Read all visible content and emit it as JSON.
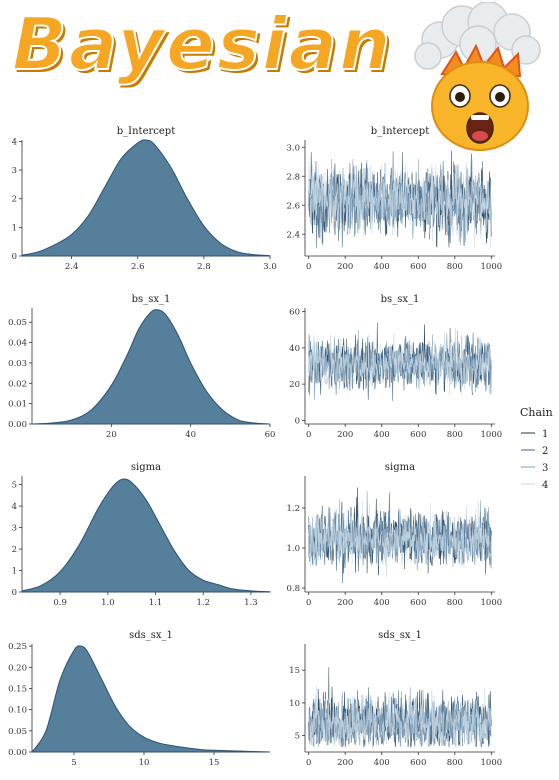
{
  "banner": {
    "text": "Bayesian",
    "color": "#f5a623",
    "emoji_icon": "exploding-head-icon"
  },
  "colors": {
    "density_fill": "#567f9c",
    "density_stroke": "#2d5170",
    "chains": [
      "#1b3752",
      "#3c6180",
      "#7d9fb8",
      "#c7d8e6"
    ]
  },
  "legend": {
    "title": "Chain",
    "entries": [
      "1",
      "2",
      "3",
      "4"
    ],
    "placement": "right"
  },
  "chart_data": [
    {
      "type": "area",
      "title": "b_Intercept",
      "kind": "density",
      "xlim": [
        2.25,
        3.0
      ],
      "ylim": [
        0,
        4.05
      ],
      "xticks": [
        2.4,
        2.6,
        2.8,
        3.0
      ],
      "xtick_labels": [
        "2.4",
        "2.6",
        "2.8",
        "3.0"
      ],
      "yticks": [
        0,
        1,
        2,
        3,
        4
      ],
      "ytick_labels": [
        "0",
        "1",
        "2",
        "3",
        "4"
      ],
      "x": [
        2.25,
        2.3,
        2.35,
        2.4,
        2.45,
        2.5,
        2.55,
        2.6,
        2.625,
        2.65,
        2.7,
        2.75,
        2.8,
        2.85,
        2.9,
        2.95,
        3.0
      ],
      "y": [
        0.03,
        0.15,
        0.4,
        0.75,
        1.4,
        2.4,
        3.4,
        3.95,
        4.05,
        3.9,
        3.1,
        2.0,
        1.05,
        0.45,
        0.15,
        0.05,
        0.01
      ]
    },
    {
      "type": "line",
      "title": "b_Intercept",
      "kind": "trace",
      "xlim": [
        -20,
        1020
      ],
      "ylim": [
        2.25,
        3.05
      ],
      "xticks": [
        0,
        200,
        400,
        600,
        800,
        1000
      ],
      "xtick_labels": [
        "0",
        "200",
        "400",
        "600",
        "800",
        "1000"
      ],
      "yticks": [
        2.4,
        2.6,
        2.8,
        3.0
      ],
      "ytick_labels": [
        "2.4",
        "2.6",
        "2.8",
        "3.0"
      ],
      "iterations": 1000,
      "center": 2.63,
      "spread": 0.13,
      "min_value": 2.3,
      "max_value": 2.98
    },
    {
      "type": "area",
      "title": "bs_sx_1",
      "kind": "density",
      "xlim": [
        0,
        60
      ],
      "ylim": [
        0,
        0.057
      ],
      "xticks": [
        20,
        40,
        60
      ],
      "xtick_labels": [
        "20",
        "40",
        "60"
      ],
      "yticks": [
        0,
        0.01,
        0.02,
        0.03,
        0.04,
        0.05
      ],
      "ytick_labels": [
        "0.00",
        "0.01",
        "0.02",
        "0.03",
        "0.04",
        "0.05"
      ],
      "x": [
        0,
        5,
        10,
        15,
        20,
        24,
        27,
        30,
        32,
        34,
        37,
        40,
        44,
        48,
        52,
        56,
        60
      ],
      "y": [
        0.0,
        0.0005,
        0.002,
        0.007,
        0.019,
        0.034,
        0.047,
        0.055,
        0.056,
        0.053,
        0.043,
        0.03,
        0.016,
        0.007,
        0.002,
        0.0005,
        0.0
      ]
    },
    {
      "type": "line",
      "title": "bs_sx_1",
      "kind": "trace",
      "xlim": [
        -20,
        1020
      ],
      "ylim": [
        -2,
        62
      ],
      "xticks": [
        0,
        200,
        400,
        600,
        800,
        1000
      ],
      "xtick_labels": [
        "0",
        "200",
        "400",
        "600",
        "800",
        "1000"
      ],
      "yticks": [
        0,
        20,
        40,
        60
      ],
      "ytick_labels": [
        "0",
        "20",
        "40",
        "60"
      ],
      "iterations": 1000,
      "center": 31,
      "spread": 7.5,
      "min_value": 3,
      "max_value": 57
    },
    {
      "type": "area",
      "title": "sigma",
      "kind": "density",
      "xlim": [
        0.82,
        1.34
      ],
      "ylim": [
        0,
        5.4
      ],
      "xticks": [
        0.9,
        1.0,
        1.1,
        1.2,
        1.3
      ],
      "xtick_labels": [
        "0.9",
        "1.0",
        "1.1",
        "1.2",
        "1.3"
      ],
      "yticks": [
        0,
        1,
        2,
        3,
        4,
        5
      ],
      "ytick_labels": [
        "0",
        "1",
        "2",
        "3",
        "4",
        "5"
      ],
      "x": [
        0.82,
        0.86,
        0.9,
        0.94,
        0.98,
        1.01,
        1.03,
        1.05,
        1.08,
        1.11,
        1.14,
        1.17,
        1.2,
        1.23,
        1.26,
        1.3,
        1.34
      ],
      "y": [
        0.05,
        0.3,
        0.95,
        2.2,
        3.9,
        4.9,
        5.25,
        5.1,
        4.3,
        3.1,
        1.9,
        1.0,
        0.55,
        0.35,
        0.15,
        0.05,
        0.01
      ]
    },
    {
      "type": "line",
      "title": "sigma",
      "kind": "trace",
      "xlim": [
        -20,
        1020
      ],
      "ylim": [
        0.78,
        1.36
      ],
      "xticks": [
        0,
        200,
        400,
        600,
        800,
        1000
      ],
      "xtick_labels": [
        "0",
        "200",
        "400",
        "600",
        "800",
        "1000"
      ],
      "yticks": [
        0.8,
        1.0,
        1.2
      ],
      "ytick_labels": [
        "0.8",
        "1.0",
        "1.2"
      ],
      "iterations": 1000,
      "center": 1.05,
      "spread": 0.075,
      "min_value": 0.82,
      "max_value": 1.32
    },
    {
      "type": "area",
      "title": "sds_sx_1",
      "kind": "density",
      "xlim": [
        2,
        19
      ],
      "ylim": [
        0,
        0.255
      ],
      "xticks": [
        5,
        10,
        15
      ],
      "xtick_labels": [
        "5",
        "10",
        "15"
      ],
      "yticks": [
        0,
        0.05,
        0.1,
        0.15,
        0.2,
        0.25
      ],
      "ytick_labels": [
        "0.00",
        "0.05",
        "0.10",
        "0.15",
        "0.20",
        "0.25"
      ],
      "x": [
        2,
        3,
        4,
        5,
        5.5,
        6,
        7,
        8,
        9,
        10,
        11,
        12,
        13,
        14,
        15,
        17,
        19
      ],
      "y": [
        0.0,
        0.05,
        0.17,
        0.24,
        0.25,
        0.235,
        0.17,
        0.105,
        0.06,
        0.035,
        0.022,
        0.015,
        0.01,
        0.006,
        0.004,
        0.002,
        0.0
      ]
    },
    {
      "type": "line",
      "title": "sds_sx_1",
      "kind": "trace",
      "xlim": [
        -20,
        1020
      ],
      "ylim": [
        2.5,
        19
      ],
      "xticks": [
        0,
        200,
        400,
        600,
        800,
        1000
      ],
      "xtick_labels": [
        "0",
        "200",
        "400",
        "600",
        "800",
        "1000"
      ],
      "yticks": [
        5,
        10,
        15
      ],
      "ytick_labels": [
        "5",
        "10",
        "15"
      ],
      "iterations": 1000,
      "center": 7.0,
      "spread": 2.2,
      "min_value": 3.2,
      "max_value": 18
    }
  ]
}
